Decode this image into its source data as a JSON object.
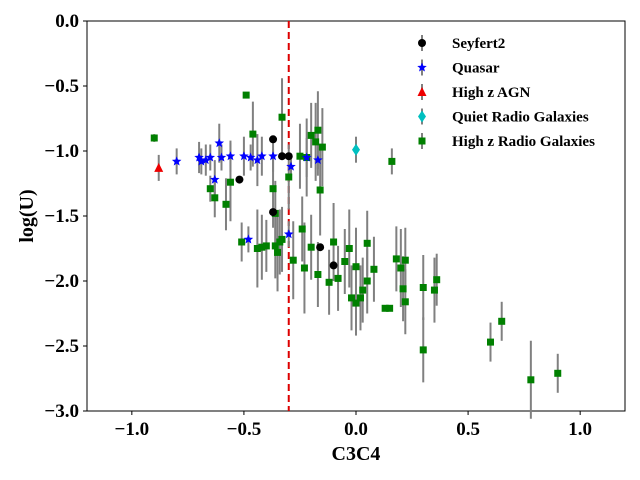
{
  "chart_data": {
    "type": "scatter",
    "title": "",
    "xlabel": "C3C4",
    "ylabel": "log(U)",
    "xlim": [
      -1.2,
      1.2
    ],
    "ylim": [
      -3.0,
      0.0
    ],
    "xticks": [
      -1.0,
      -0.5,
      0.0,
      0.5,
      1.0
    ],
    "xtick_labels": [
      "−1.0",
      "−0.5",
      "0.0",
      "0.5",
      "1.0"
    ],
    "yticks": [
      -3.0,
      -2.5,
      -2.0,
      -1.5,
      -1.0,
      -0.5,
      0.0
    ],
    "ytick_labels": [
      "−3.0",
      "−2.5",
      "−2.0",
      "−1.5",
      "−1.0",
      "−0.5",
      "0.0"
    ],
    "grid": false,
    "legend_position": "top-right",
    "reference_line": {
      "x": -0.3,
      "color": "#dd0000",
      "style": "dashed"
    },
    "series": [
      {
        "name": "Seyfert2",
        "color": "#000000",
        "marker": "circle",
        "points": [
          {
            "x": -0.52,
            "y": -1.22,
            "err": 0.0
          },
          {
            "x": -0.37,
            "y": -0.91,
            "err": 0.0
          },
          {
            "x": -0.33,
            "y": -1.04,
            "err": 0.0
          },
          {
            "x": -0.3,
            "y": -1.04,
            "err": 0.0
          },
          {
            "x": -0.37,
            "y": -1.47,
            "err": 0.0
          },
          {
            "x": -0.16,
            "y": -1.74,
            "err": 0.0
          },
          {
            "x": -0.1,
            "y": -1.88,
            "err": 0.0
          }
        ]
      },
      {
        "name": "Quasar",
        "color": "#0000ff",
        "marker": "star",
        "points": [
          {
            "x": -0.8,
            "y": -1.08,
            "err": 0.1
          },
          {
            "x": -0.7,
            "y": -1.05,
            "err": 0.12
          },
          {
            "x": -0.69,
            "y": -1.08,
            "err": 0.1
          },
          {
            "x": -0.67,
            "y": -1.07,
            "err": 0.12
          },
          {
            "x": -0.65,
            "y": -1.05,
            "err": 0.1
          },
          {
            "x": -0.63,
            "y": -1.22,
            "err": 0.15
          },
          {
            "x": -0.61,
            "y": -0.94,
            "err": 0.15
          },
          {
            "x": -0.6,
            "y": -1.05,
            "err": 0.1
          },
          {
            "x": -0.56,
            "y": -1.04,
            "err": 0.12
          },
          {
            "x": -0.5,
            "y": -1.04,
            "err": 0.15
          },
          {
            "x": -0.47,
            "y": -1.05,
            "err": 0.1
          },
          {
            "x": -0.44,
            "y": -1.07,
            "err": 0.2
          },
          {
            "x": -0.42,
            "y": -1.04,
            "err": 0.15
          },
          {
            "x": -0.37,
            "y": -1.04,
            "err": 0.12
          },
          {
            "x": -0.29,
            "y": -1.12,
            "err": 0.1
          },
          {
            "x": -0.3,
            "y": -1.64,
            "err": 0.1
          },
          {
            "x": -0.22,
            "y": -1.05,
            "err": 0.15
          },
          {
            "x": -0.17,
            "y": -1.07,
            "err": 0.12
          },
          {
            "x": -0.48,
            "y": -1.68,
            "err": 0.1
          }
        ]
      },
      {
        "name": "High z AGN",
        "color": "#ee0000",
        "marker": "triangle",
        "points": [
          {
            "x": -0.88,
            "y": -1.13,
            "err": 0.1
          }
        ]
      },
      {
        "name": "Quiet Radio Galaxies",
        "color": "#00c0c0",
        "marker": "diamond",
        "points": [
          {
            "x": 0.0,
            "y": -0.99,
            "err": 0.1
          }
        ]
      },
      {
        "name": "High z Radio Galaxies",
        "color": "#008000",
        "marker": "square",
        "points": [
          {
            "x": -0.9,
            "y": -0.9,
            "err": 0.03
          },
          {
            "x": -0.65,
            "y": -1.29,
            "err": 0.1
          },
          {
            "x": -0.63,
            "y": -1.36,
            "err": 0.15
          },
          {
            "x": -0.58,
            "y": -1.41,
            "err": 0.2
          },
          {
            "x": -0.56,
            "y": -1.24,
            "err": 0.3
          },
          {
            "x": -0.51,
            "y": -1.7,
            "err": 0.15
          },
          {
            "x": -0.49,
            "y": -0.57,
            "err": 0.01
          },
          {
            "x": -0.46,
            "y": -0.87,
            "err": 0.25
          },
          {
            "x": -0.44,
            "y": -1.75,
            "err": 0.3
          },
          {
            "x": -0.42,
            "y": -1.74,
            "err": 0.25
          },
          {
            "x": -0.4,
            "y": -1.73,
            "err": 0.2
          },
          {
            "x": -0.37,
            "y": -1.29,
            "err": 0.3
          },
          {
            "x": -0.36,
            "y": -1.48,
            "err": 0.25
          },
          {
            "x": -0.36,
            "y": -1.73,
            "err": 0.25
          },
          {
            "x": -0.35,
            "y": -1.78,
            "err": 0.3
          },
          {
            "x": -0.34,
            "y": -1.7,
            "err": 0.25
          },
          {
            "x": -0.33,
            "y": -0.74,
            "err": 0.3
          },
          {
            "x": -0.33,
            "y": -1.68,
            "err": 0.25
          },
          {
            "x": -0.3,
            "y": -1.2,
            "err": 0.25
          },
          {
            "x": -0.28,
            "y": -1.84,
            "err": 0.3
          },
          {
            "x": -0.25,
            "y": -1.04,
            "err": 0.25
          },
          {
            "x": -0.24,
            "y": -1.6,
            "err": 0.25
          },
          {
            "x": -0.23,
            "y": -1.9,
            "err": 0.35
          },
          {
            "x": -0.22,
            "y": -1.05,
            "err": 0.3
          },
          {
            "x": -0.2,
            "y": -1.74,
            "err": 0.25
          },
          {
            "x": -0.2,
            "y": -0.88,
            "err": 0.25
          },
          {
            "x": -0.18,
            "y": -0.93,
            "err": 0.3
          },
          {
            "x": -0.17,
            "y": -1.95,
            "err": 0.25
          },
          {
            "x": -0.17,
            "y": -0.84,
            "err": 0.3
          },
          {
            "x": -0.16,
            "y": -1.3,
            "err": 0.35
          },
          {
            "x": -0.15,
            "y": -0.97,
            "err": 0.3
          },
          {
            "x": -0.12,
            "y": -2.01,
            "err": 0.25
          },
          {
            "x": -0.1,
            "y": -1.7,
            "err": 0.3
          },
          {
            "x": -0.08,
            "y": -1.98,
            "err": 0.25
          },
          {
            "x": -0.05,
            "y": -1.85,
            "err": 0.25
          },
          {
            "x": -0.03,
            "y": -1.75,
            "err": 0.3
          },
          {
            "x": -0.02,
            "y": -2.13,
            "err": 0.25
          },
          {
            "x": 0.0,
            "y": -2.17,
            "err": 0.25
          },
          {
            "x": 0.0,
            "y": -1.89,
            "err": 0.3
          },
          {
            "x": 0.02,
            "y": -2.13,
            "err": 0.25
          },
          {
            "x": 0.03,
            "y": -2.07,
            "err": 0.25
          },
          {
            "x": 0.05,
            "y": -1.71,
            "err": 0.25
          },
          {
            "x": 0.05,
            "y": -2.0,
            "err": 0.25
          },
          {
            "x": 0.08,
            "y": -1.91,
            "err": 0.25
          },
          {
            "x": 0.13,
            "y": -2.21,
            "err": 0.02
          },
          {
            "x": 0.15,
            "y": -2.21,
            "err": 0.02
          },
          {
            "x": 0.16,
            "y": -1.08,
            "err": 0.1
          },
          {
            "x": 0.18,
            "y": -1.83,
            "err": 0.25
          },
          {
            "x": 0.2,
            "y": -1.9,
            "err": 0.3
          },
          {
            "x": 0.21,
            "y": -2.06,
            "err": 0.25
          },
          {
            "x": 0.22,
            "y": -1.84,
            "err": 0.25
          },
          {
            "x": 0.22,
            "y": -2.16,
            "err": 0.25
          },
          {
            "x": 0.3,
            "y": -2.05,
            "err": 0.25
          },
          {
            "x": 0.3,
            "y": -2.53,
            "err": 0.25
          },
          {
            "x": 0.35,
            "y": -2.07,
            "err": 0.25
          },
          {
            "x": 0.36,
            "y": -1.99,
            "err": 0.2
          },
          {
            "x": 0.6,
            "y": -2.47,
            "err": 0.15
          },
          {
            "x": 0.65,
            "y": -2.31,
            "err": 0.15
          },
          {
            "x": 0.78,
            "y": -2.76,
            "err": 0.3
          },
          {
            "x": 0.9,
            "y": -2.71,
            "err": 0.15
          }
        ]
      }
    ]
  }
}
